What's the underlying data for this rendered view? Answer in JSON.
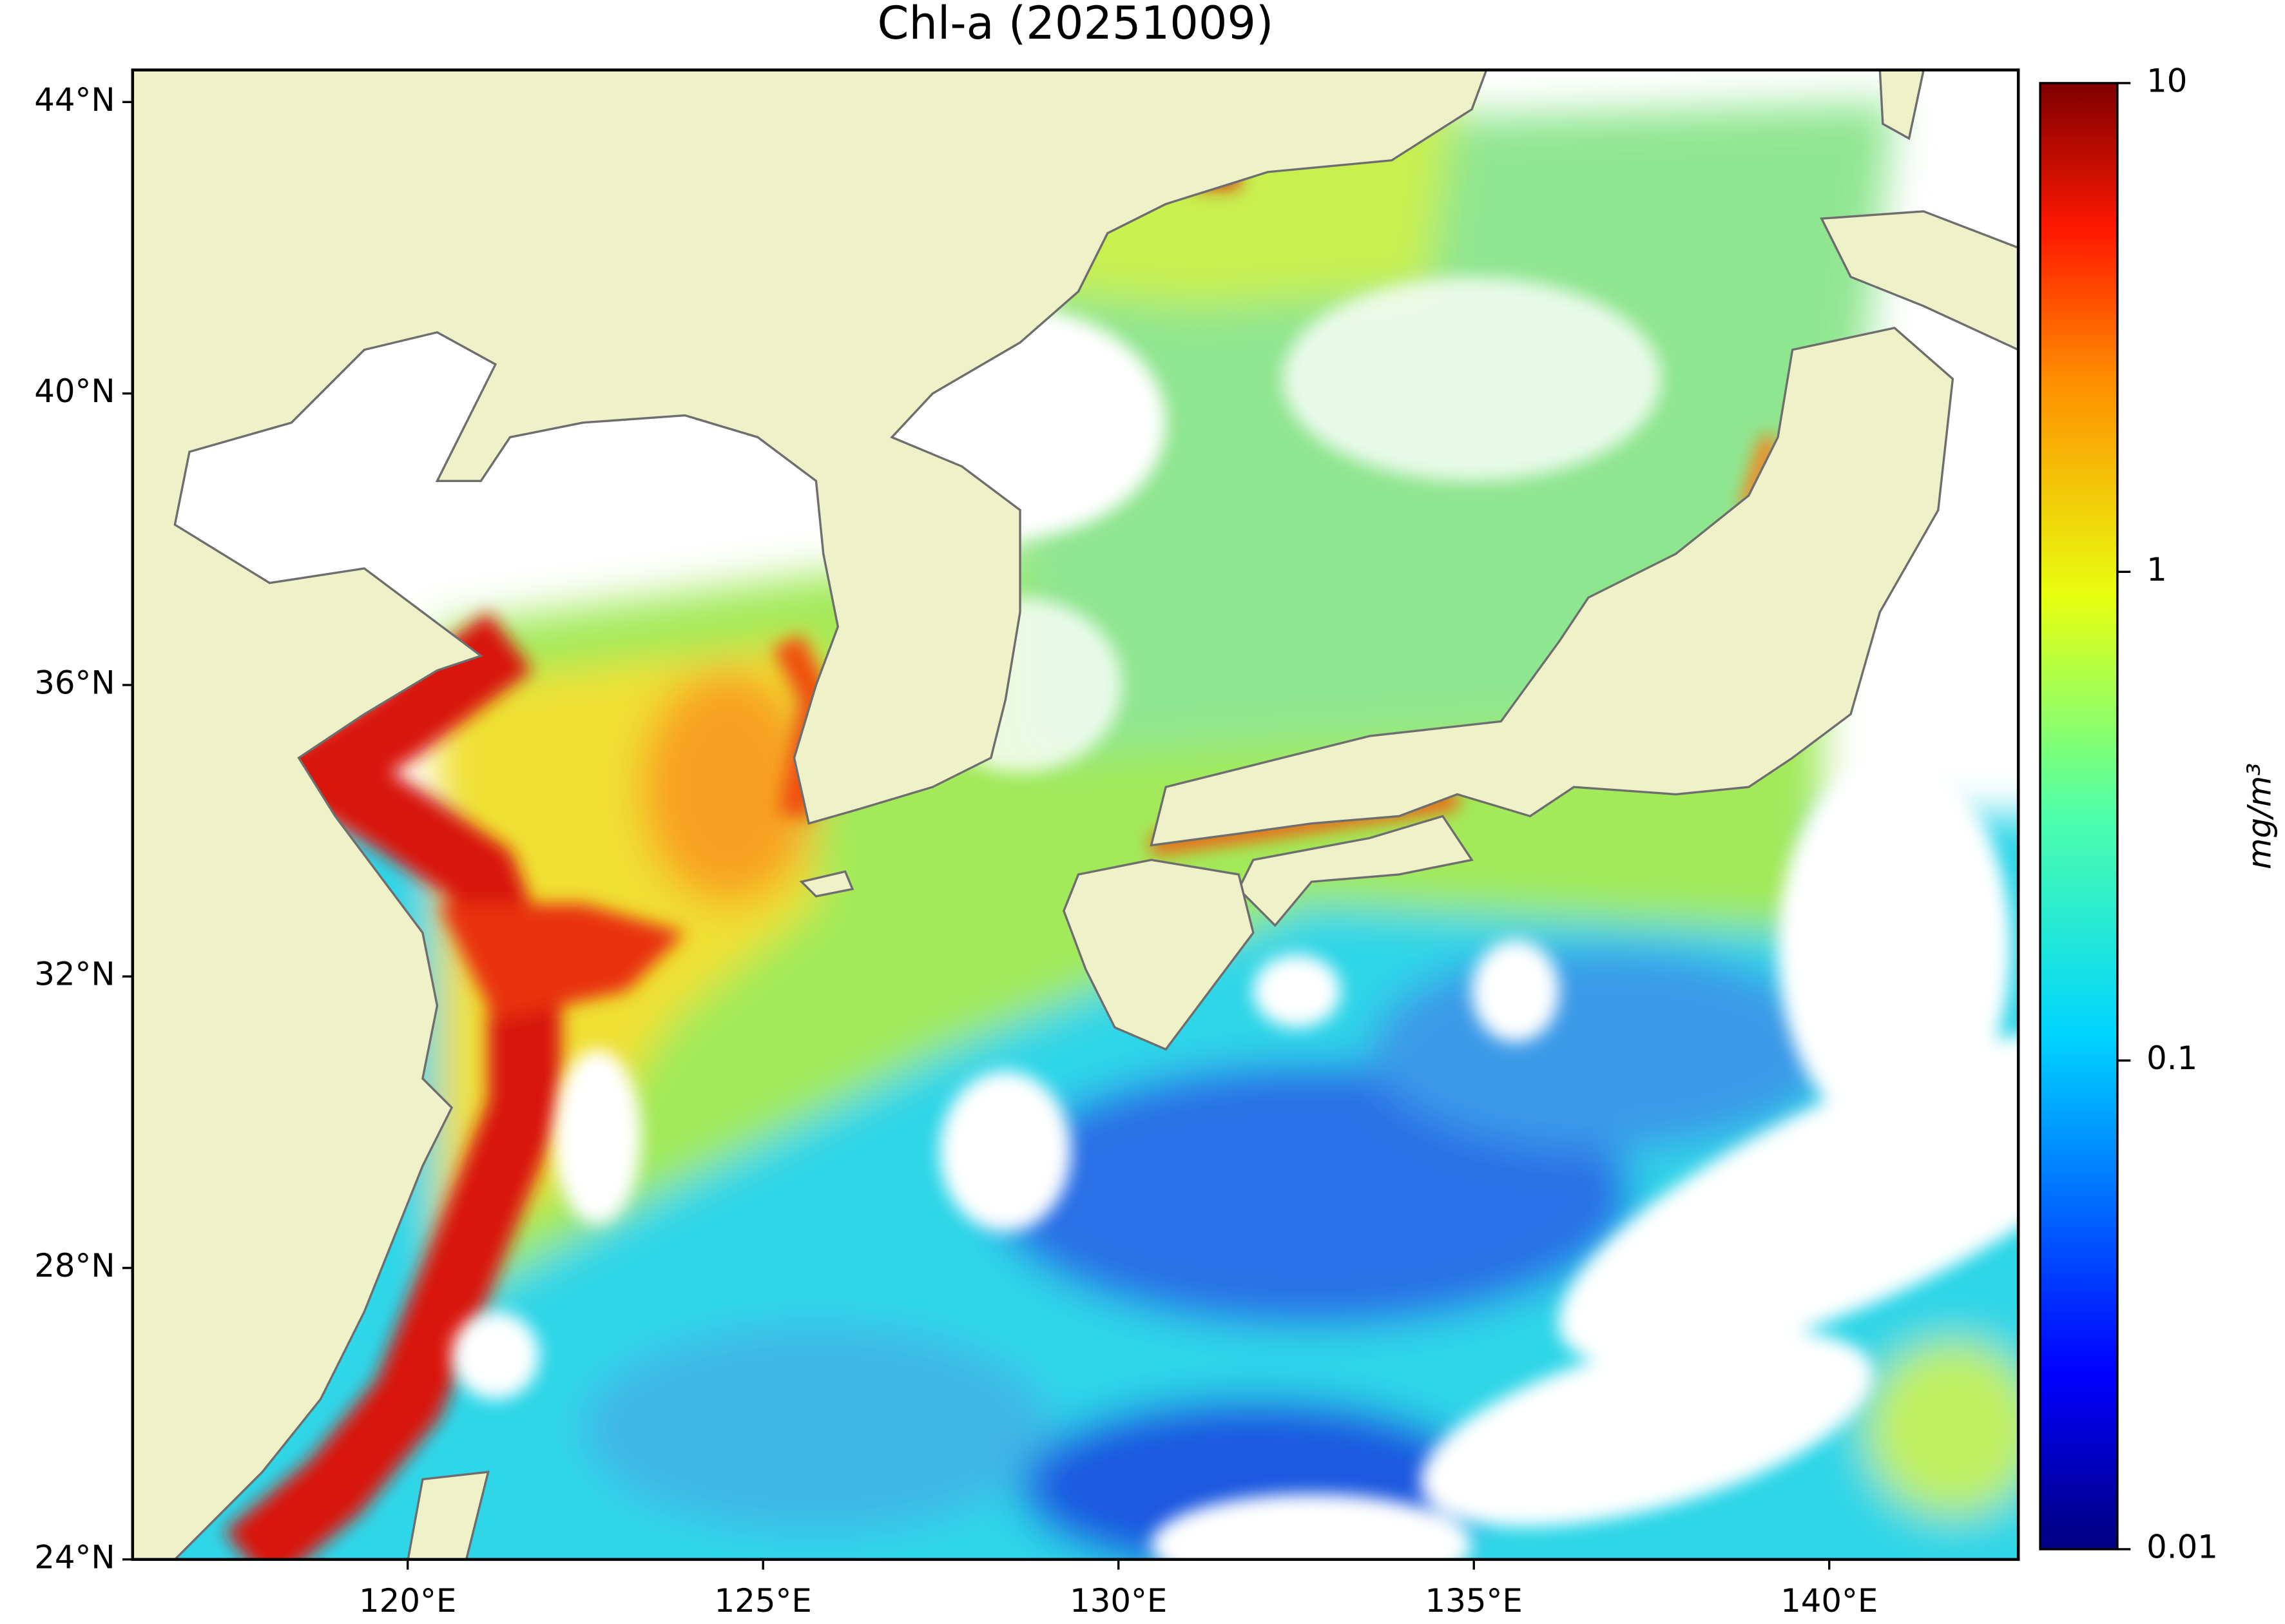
{
  "chart_data": {
    "type": "map",
    "title": "Chl-a (20251009)",
    "xlim": [
      116.13,
      142.66
    ],
    "ylim": [
      24,
      44.44
    ],
    "xticks": [
      {
        "value": 120,
        "label": "120°E"
      },
      {
        "value": 125,
        "label": "125°E"
      },
      {
        "value": 130,
        "label": "130°E"
      },
      {
        "value": 135,
        "label": "135°E"
      },
      {
        "value": 140,
        "label": "140°E"
      }
    ],
    "yticks": [
      {
        "value": 24,
        "label": "24°N"
      },
      {
        "value": 28,
        "label": "28°N"
      },
      {
        "value": 32,
        "label": "32°N"
      },
      {
        "value": 36,
        "label": "36°N"
      },
      {
        "value": 40,
        "label": "40°N"
      },
      {
        "value": 44,
        "label": "44°N"
      }
    ],
    "colorbar": {
      "label": "mg/m³",
      "scale": "log",
      "colormap": "jet",
      "range": [
        0.01,
        10
      ],
      "ticks": [
        0.01,
        0.1,
        1,
        10
      ]
    }
  }
}
